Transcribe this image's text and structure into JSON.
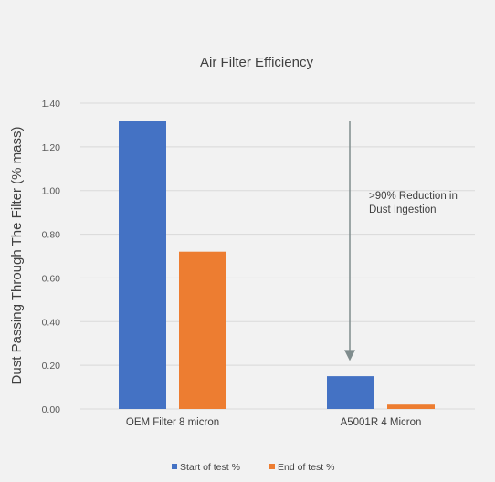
{
  "chart_data": {
    "type": "bar",
    "title": "Air Filter Efficiency",
    "ylabel": "Dust Passing Through The Filter (% mass)",
    "xlabel": "",
    "ylim": [
      0,
      1.4
    ],
    "yticks": [
      "0.00",
      "0.20",
      "0.40",
      "0.60",
      "0.80",
      "1.00",
      "1.20",
      "1.40"
    ],
    "categories": [
      "OEM Filter 8 micron",
      "A5001R 4 Micron"
    ],
    "series": [
      {
        "name": "Start of test %",
        "color": "#4472c4",
        "values": [
          1.32,
          0.15
        ]
      },
      {
        "name": "End of test %",
        "color": "#ed7d31",
        "values": [
          0.72,
          0.02
        ]
      }
    ],
    "annotation": {
      "lines": [
        ">90% Reduction in",
        "Dust Ingestion"
      ],
      "arrow_from": 1.32,
      "arrow_to": 0.22,
      "arrow_color": "#7f8c8d"
    },
    "legend_position": "bottom",
    "grid": true
  }
}
